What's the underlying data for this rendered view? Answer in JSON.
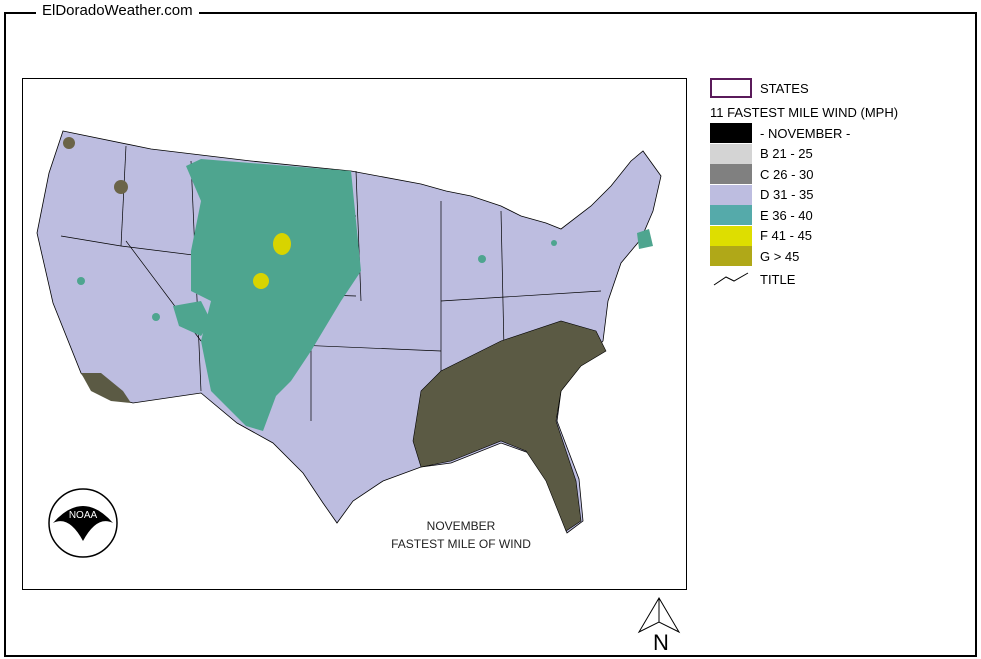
{
  "site_title": "ElDoradoWeather.com",
  "map": {
    "caption_line1": "NOVEMBER",
    "caption_line2": "FASTEST MILE OF WIND",
    "logo": "noaa-logo",
    "north_label": "N",
    "colors": {
      "D": "#bdbde0",
      "E": "#4ea58f",
      "F": "#d8d400",
      "southeast": "#5b5a44",
      "small_spots": "#6b6448"
    }
  },
  "legend": {
    "states_label": "STATES",
    "heading": "11 FASTEST MILE WIND (MPH)",
    "items": [
      {
        "label": "- NOVEMBER -",
        "color": "#000000"
      },
      {
        "label": "B 21 - 25",
        "color": "#d4d4d4"
      },
      {
        "label": "C 26 - 30",
        "color": "#808080"
      },
      {
        "label": "D 31 - 35",
        "color": "#bdbde0"
      },
      {
        "label": "E 36 - 40",
        "color": "#55aaaa"
      },
      {
        "label": "F 41 - 45",
        "color": "#dede00"
      },
      {
        "label": "G > 45",
        "color": "#b0a818"
      }
    ],
    "title_label": "TITLE"
  }
}
